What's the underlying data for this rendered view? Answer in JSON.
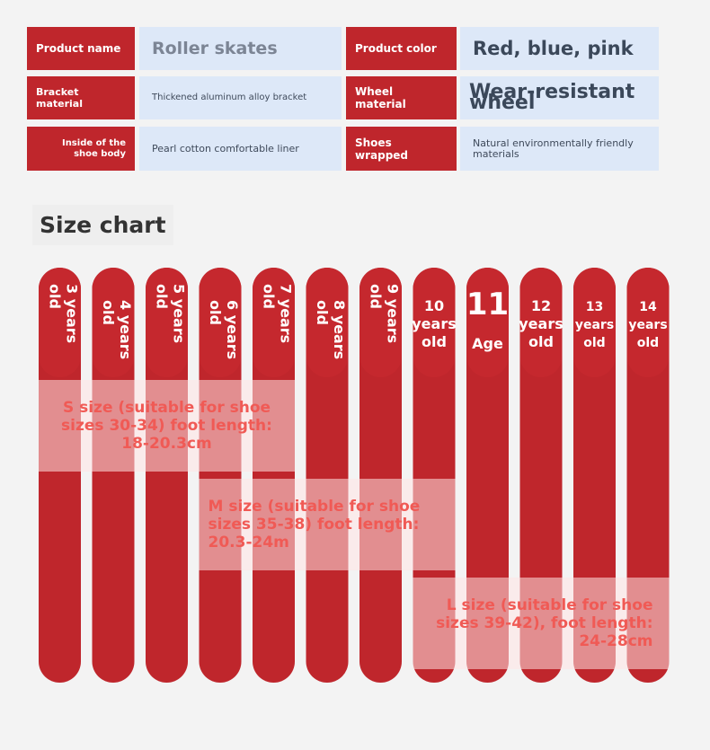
{
  "specs": [
    [
      {
        "label": "Product name",
        "value": "Roller skates"
      },
      {
        "label": "Product color",
        "value": "Red, blue, pink"
      }
    ],
    [
      {
        "label": "Bracket material",
        "value": "Thickened aluminum alloy bracket"
      },
      {
        "label": "Wheel material",
        "value": "Wear-resistant wheel"
      }
    ],
    [
      {
        "label": "Inside of the shoe body",
        "value": "Pearl cotton comfortable liner"
      },
      {
        "label": "Shoes wrapped",
        "value": "Natural environmentally friendly materials"
      }
    ]
  ],
  "size_chart": {
    "title": "Size chart",
    "ages": [
      [
        "3 years",
        "old"
      ],
      [
        "4 years",
        "old"
      ],
      [
        "5 years",
        "old"
      ],
      [
        "6 years",
        "old"
      ],
      [
        "7 years",
        "old"
      ],
      [
        "8 years",
        "old"
      ],
      [
        "9 years",
        "old"
      ],
      [
        "10",
        "years",
        "old"
      ],
      [
        "11",
        "Age"
      ],
      [
        "12",
        "years",
        "old"
      ],
      [
        "13",
        "years",
        "old"
      ],
      [
        "14",
        "years",
        "old"
      ]
    ],
    "sizes": [
      [
        "S size (suitable for shoe",
        "sizes 30-34) foot length:",
        "18-20.3cm"
      ],
      [
        "M size (suitable for shoe",
        "sizes 35-38) foot length:",
        "20.3-24m"
      ],
      [
        "L size (suitable for shoe",
        "sizes 39-42), foot length:",
        "24-28cm"
      ]
    ]
  }
}
